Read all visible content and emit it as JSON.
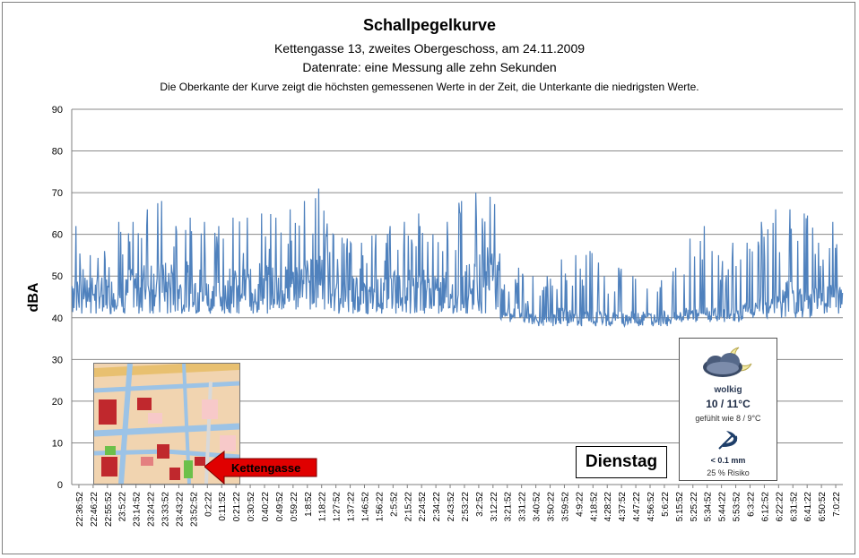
{
  "chart_data": {
    "type": "line",
    "title": "Schallpegelkurve",
    "subtitle_lines": [
      "Kettengasse 13, zweites Obergeschoss, am 24.11.2009",
      "Datenrate: eine Messung alle zehn Sekunden",
      "Die Oberkante der Kurve zeigt die höchsten gemessenen Werte  in der Zeit, die Unterkante  die niedrigsten Werte."
    ],
    "ylabel": "dBA",
    "xlabel": "",
    "ylim": [
      0,
      90
    ],
    "yticks": [
      0,
      10,
      20,
      30,
      40,
      50,
      60,
      70,
      80,
      90
    ],
    "grid": true,
    "line_color": "#4f81bd",
    "categories": [
      "22:36:52",
      "22:46:22",
      "22:55:52",
      "23:5:22",
      "23:14:52",
      "23:24:22",
      "23:33:52",
      "23:43:22",
      "23:52:52",
      "0:2:22",
      "0:11:52",
      "0:21:22",
      "0:30:52",
      "0:40:22",
      "0:49:52",
      "0:59:22",
      "1:8:52",
      "1:18:22",
      "1:27:52",
      "1:37:22",
      "1:46:52",
      "1:56:22",
      "2:5:52",
      "2:15:22",
      "2:24:52",
      "2:34:22",
      "2:43:52",
      "2:53:22",
      "3:2:52",
      "3:12:22",
      "3:21:52",
      "3:31:22",
      "3:40:52",
      "3:50:22",
      "3:59:52",
      "4:9:22",
      "4:18:52",
      "4:28:22",
      "4:37:52",
      "4:47:22",
      "4:56:52",
      "5:6:22",
      "5:15:52",
      "5:25:22",
      "5:34:52",
      "5:44:22",
      "5:53:52",
      "6:3:22",
      "6:12:52",
      "6:22:22",
      "6:31:52",
      "6:41:22",
      "6:50:52",
      "7:0:22"
    ],
    "series": [
      {
        "min": [
          41,
          41,
          41,
          41,
          41,
          41,
          41,
          41,
          41,
          41,
          41,
          41,
          41,
          41,
          42,
          42,
          42,
          42,
          41,
          41,
          41,
          41,
          41,
          41,
          41,
          41,
          41,
          41,
          41,
          42,
          39,
          39,
          38,
          38,
          38,
          38,
          38,
          38,
          38,
          38,
          38,
          38,
          39,
          39,
          39,
          39,
          39,
          40,
          40,
          40,
          40,
          40,
          41,
          41
        ],
        "max": [
          62,
          55,
          56,
          63,
          63,
          66,
          68,
          62,
          64,
          63,
          62,
          64,
          64,
          65,
          64,
          66,
          68,
          71,
          60,
          59,
          58,
          60,
          62,
          63,
          65,
          60,
          63,
          68,
          70,
          69,
          48,
          52,
          50,
          50,
          54,
          55,
          56,
          50,
          52,
          50,
          47,
          49,
          52,
          59,
          62,
          55,
          58,
          58,
          63,
          66,
          66,
          65,
          58,
          63
        ],
        "median": [
          47,
          46,
          46,
          46,
          47,
          48,
          48,
          47,
          48,
          46,
          46,
          47,
          47,
          48,
          48,
          48,
          49,
          52,
          47,
          46,
          45,
          46,
          47,
          47,
          47,
          46,
          47,
          48,
          50,
          51,
          41,
          42,
          40,
          40,
          41,
          40,
          40,
          40,
          40,
          40,
          40,
          40,
          41,
          41,
          41,
          41,
          41,
          42,
          43,
          44,
          45,
          45,
          45,
          45
        ]
      }
    ]
  },
  "map": {
    "street_label": "Kettengasse"
  },
  "day_label": "Dienstag",
  "weather": {
    "icon": "cloud-moon-icon",
    "condition": "wolkig",
    "temp": "10 / 11°C",
    "feels_like": "gefühlt wie 8 / 9°C",
    "rain_icon": "umbrella-icon",
    "rain": "< 0.1 mm",
    "risk": "25 % Risiko"
  }
}
